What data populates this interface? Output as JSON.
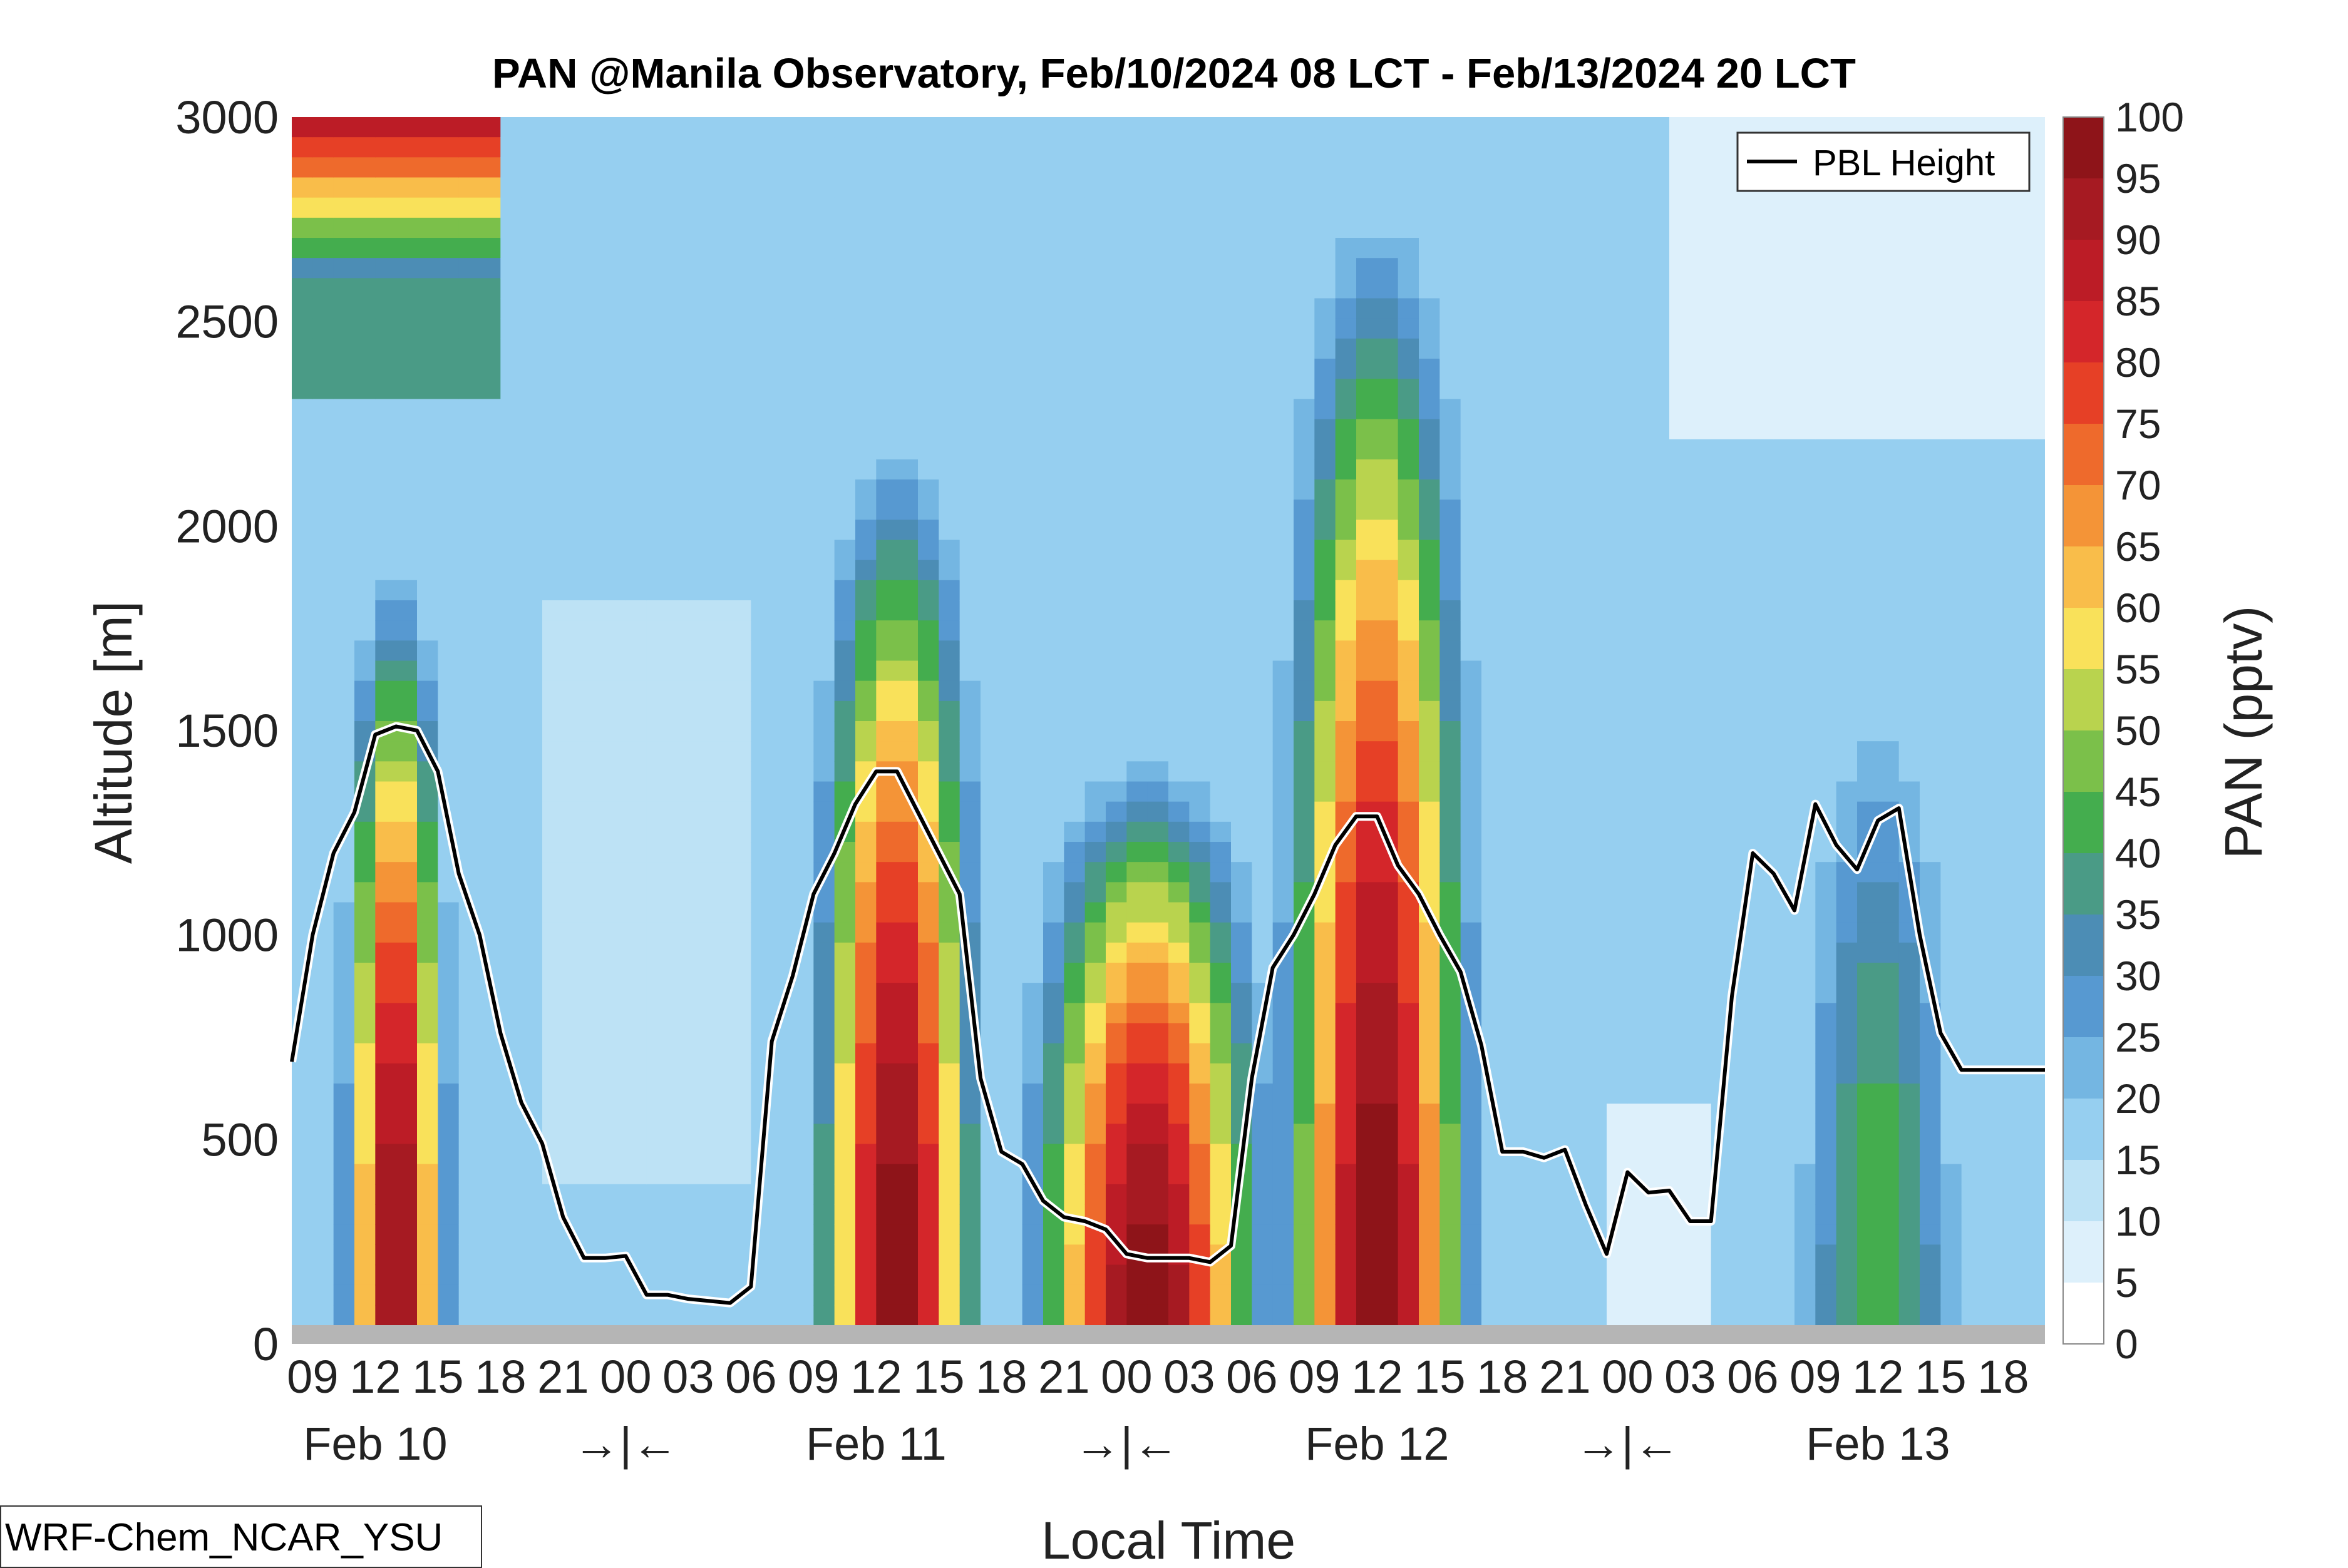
{
  "chart_data": {
    "type": "heatmap",
    "title": "PAN @Manila Observatory, Feb/10/2024 08 LCT - Feb/13/2024 20 LCT",
    "xlabel": "Local Time",
    "ylabel": "Altitude [m]",
    "ylim": [
      0,
      3000
    ],
    "y_ticks": [
      "0",
      "500",
      "1000",
      "1500",
      "2000",
      "2500",
      "3000"
    ],
    "x_hour_ticks": [
      "09",
      "12",
      "15",
      "18",
      "21",
      "00",
      "03",
      "06",
      "09",
      "12",
      "15",
      "18",
      "21",
      "00",
      "03",
      "06",
      "09",
      "12",
      "15",
      "18",
      "21",
      "00",
      "03",
      "06",
      "09",
      "12",
      "15",
      "18"
    ],
    "x_day_labels": [
      "Feb 10",
      "→|←",
      "Feb 11",
      "→|←",
      "Feb 12",
      "→|←",
      "Feb 13"
    ],
    "colorbar": {
      "label": "PAN (pptv)",
      "ticks": [
        "0",
        "5",
        "10",
        "15",
        "20",
        "25",
        "30",
        "35",
        "40",
        "45",
        "50",
        "55",
        "60",
        "65",
        "70",
        "75",
        "80",
        "85",
        "90",
        "95",
        "100"
      ],
      "colors": [
        "#ffffff",
        "#ddf0fb",
        "#bde2f5",
        "#96cff0",
        "#74b6e2",
        "#5799d1",
        "#4c8db5",
        "#4a9b86",
        "#44ad4e",
        "#7bc04a",
        "#b9d34e",
        "#f9e15a",
        "#f9bd4a",
        "#f49437",
        "#ee6a2c",
        "#e64026",
        "#d4262a",
        "#bc1c26",
        "#a61a22",
        "#8e1419"
      ]
    },
    "legend": {
      "position": "top-right",
      "items": [
        "PBL Height"
      ]
    },
    "series": [
      {
        "name": "PBL Height",
        "x_hours": [
          0,
          1,
          2,
          3,
          4,
          5,
          6,
          7,
          8,
          9,
          10,
          11,
          12,
          13,
          14,
          15,
          16,
          17,
          18,
          19,
          20,
          21,
          22,
          23,
          24,
          25,
          26,
          27,
          28,
          29,
          30,
          31,
          32,
          33,
          34,
          35,
          36,
          37,
          38,
          39,
          40,
          41,
          42,
          43,
          44,
          45,
          46,
          47,
          48,
          49,
          50,
          51,
          52,
          53,
          54,
          55,
          56,
          57,
          58,
          59,
          60,
          61,
          62,
          63,
          64,
          65,
          66,
          67,
          68,
          69,
          70,
          71,
          72,
          73,
          74,
          75,
          76,
          77,
          78,
          79,
          80,
          81,
          82,
          83,
          84
        ],
        "values": [
          690,
          1000,
          1200,
          1300,
          1490,
          1510,
          1500,
          1400,
          1150,
          1000,
          760,
          590,
          490,
          310,
          210,
          210,
          215,
          120,
          120,
          110,
          105,
          100,
          140,
          740,
          900,
          1100,
          1200,
          1320,
          1400,
          1400,
          1300,
          1200,
          1100,
          650,
          470,
          440,
          350,
          310,
          300,
          280,
          220,
          210,
          210,
          210,
          200,
          240,
          650,
          920,
          1000,
          1100,
          1220,
          1290,
          1290,
          1170,
          1100,
          1000,
          910,
          730,
          470,
          470,
          455,
          475,
          340,
          220,
          420,
          370,
          375,
          300,
          300,
          850,
          1200,
          1150,
          1060,
          1320,
          1220,
          1160,
          1280,
          1310,
          1000,
          760,
          670,
          670,
          670,
          670,
          670
        ]
      }
    ]
  },
  "watermark": "WRF-Chem_NCAR_YSU"
}
